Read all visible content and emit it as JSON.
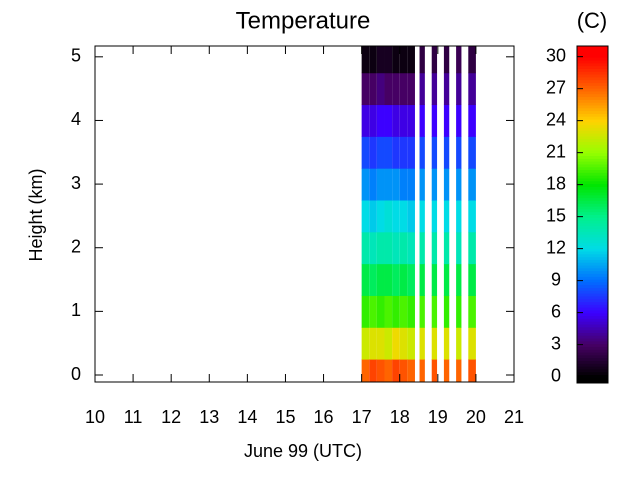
{
  "chart_data": {
    "type": "heatmap",
    "title": "Temperature",
    "xlabel": "June 99 (UTC)",
    "ylabel": "Height (km)",
    "colorbar_label": "(C)",
    "xlim": [
      10,
      21
    ],
    "xticks": [
      10,
      11,
      12,
      13,
      14,
      15,
      16,
      17,
      18,
      19,
      20,
      21
    ],
    "ylim": [
      -0.11,
      5.17
    ],
    "yticks": [
      0,
      1,
      2,
      3,
      4,
      5
    ],
    "clim": [
      -0.6,
      31
    ],
    "cticks": [
      0,
      3,
      6,
      9,
      12,
      15,
      18,
      21,
      24,
      27,
      30
    ],
    "x": [
      17.0,
      17.2,
      17.4,
      17.6,
      17.8,
      18.0,
      18.2,
      18.52,
      18.84,
      19.16,
      19.48,
      19.8
    ],
    "x_end": [
      17.2,
      17.4,
      17.6,
      17.8,
      18.0,
      18.2,
      18.4,
      18.66,
      18.98,
      19.3,
      19.62,
      20.0
    ],
    "y": [
      0,
      0.5,
      1,
      1.5,
      2,
      2.5,
      3,
      3.5,
      4,
      4.5,
      5
    ],
    "z": [
      [
        27,
        22.5,
        19,
        16.5,
        14,
        12,
        10,
        8,
        5.5,
        3,
        0.5
      ],
      [
        28,
        23,
        19.5,
        16,
        13.5,
        11.5,
        9.5,
        7.5,
        5.5,
        3,
        0.5
      ],
      [
        27.5,
        23,
        19,
        16.5,
        14,
        12,
        10,
        8,
        6,
        3.5,
        1
      ],
      [
        27,
        22.5,
        19.5,
        16.5,
        14,
        12.5,
        10,
        8,
        6,
        3,
        1
      ],
      [
        28,
        23.5,
        19,
        16,
        13.5,
        12,
        10,
        7.5,
        5.5,
        3,
        0.5
      ],
      [
        27.5,
        23,
        19.5,
        16.5,
        14,
        12,
        9.5,
        7.5,
        5.5,
        3,
        0.5
      ],
      [
        27,
        22.5,
        19,
        16,
        13.5,
        11.5,
        9.5,
        7.5,
        5.5,
        3,
        0.5
      ],
      [
        27,
        23,
        19.5,
        16.5,
        14,
        12,
        10,
        8,
        6,
        4,
        2
      ],
      [
        27.5,
        23,
        19.5,
        16.5,
        14,
        12,
        10,
        8,
        6,
        4,
        2
      ],
      [
        27,
        23,
        19,
        16.5,
        14,
        12,
        10,
        8,
        6,
        4,
        2
      ],
      [
        27,
        22.5,
        19,
        16.5,
        13.5,
        12,
        10,
        8,
        6,
        4,
        2.5
      ],
      [
        27.5,
        23,
        19.5,
        16.5,
        14,
        12,
        10,
        8,
        6,
        4,
        2
      ]
    ]
  }
}
